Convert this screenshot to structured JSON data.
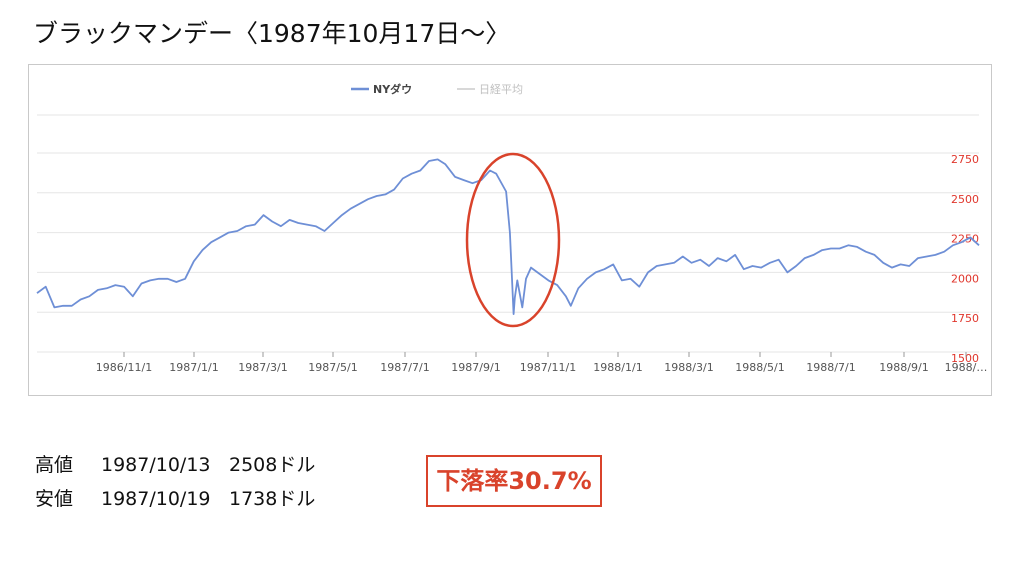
{
  "title": "ブラックマンデー〈1987年10月17日〜〉",
  "stats": {
    "high": {
      "label": "高値",
      "date": "1987/10/13",
      "value": "2508ドル"
    },
    "low": {
      "label": "安値",
      "date": "1987/10/19",
      "value": "1738ドル"
    }
  },
  "drop_label": "下落率30.7%",
  "colors": {
    "series": "#6e8fd6",
    "axis_labels": "#e0362c",
    "highlight": "#d9432b",
    "grid": "#e6e6e6"
  },
  "chart_data": {
    "type": "line",
    "title": "",
    "xlabel": "",
    "ylabel": "",
    "ylim": [
      1500,
      2750
    ],
    "y_ticks": [
      "1500",
      "1750",
      "2000",
      "2250",
      "2500",
      "2750"
    ],
    "x_ticks": [
      "1986/11/1",
      "1987/1/1",
      "1987/3/1",
      "1987/5/1",
      "1987/7/1",
      "1987/9/1",
      "1987/11/1",
      "1988/1/1",
      "1988/3/1",
      "1988/5/1",
      "1988/7/1",
      "1988/9/1",
      "1988/…"
    ],
    "legend": [
      {
        "name": "NYダウ",
        "active": true
      },
      {
        "name": "日経平均",
        "active": false
      }
    ],
    "legend_position": "top",
    "grid": true,
    "series": [
      {
        "name": "NYダウ",
        "x": [
          "1986/10/1",
          "1986/10/8",
          "1986/10/15",
          "1986/10/22",
          "1986/10/29",
          "1986/11/5",
          "1986/11/12",
          "1986/11/19",
          "1986/11/26",
          "1986/12/3",
          "1986/12/10",
          "1986/12/17",
          "1986/12/24",
          "1986/12/31",
          "1987/1/7",
          "1987/1/14",
          "1987/1/21",
          "1987/1/28",
          "1987/2/4",
          "1987/2/11",
          "1987/2/18",
          "1987/2/25",
          "1987/3/4",
          "1987/3/11",
          "1987/3/18",
          "1987/3/25",
          "1987/4/1",
          "1987/4/8",
          "1987/4/15",
          "1987/4/22",
          "1987/4/29",
          "1987/5/6",
          "1987/5/13",
          "1987/5/20",
          "1987/5/27",
          "1987/6/3",
          "1987/6/10",
          "1987/6/17",
          "1987/6/24",
          "1987/7/1",
          "1987/7/8",
          "1987/7/15",
          "1987/7/22",
          "1987/7/29",
          "1987/8/5",
          "1987/8/12",
          "1987/8/19",
          "1987/8/25",
          "1987/9/2",
          "1987/9/9",
          "1987/9/16",
          "1987/9/23",
          "1987/9/30",
          "1987/10/5",
          "1987/10/13",
          "1987/10/16",
          "1987/10/19",
          "1987/10/20",
          "1987/10/22",
          "1987/10/26",
          "1987/10/29",
          "1987/11/2",
          "1987/11/9",
          "1987/11/16",
          "1987/11/23",
          "1987/11/30",
          "1987/12/4",
          "1987/12/10",
          "1987/12/17",
          "1987/12/24",
          "1987/12/31",
          "1988/1/7",
          "1988/1/14",
          "1988/1/21",
          "1988/1/28",
          "1988/2/4",
          "1988/2/11",
          "1988/2/18",
          "1988/2/25",
          "1988/3/3",
          "1988/3/10",
          "1988/3/17",
          "1988/3/24",
          "1988/3/31",
          "1988/4/7",
          "1988/4/14",
          "1988/4/21",
          "1988/4/28",
          "1988/5/5",
          "1988/5/12",
          "1988/5/19",
          "1988/5/26",
          "1988/6/2",
          "1988/6/9",
          "1988/6/16",
          "1988/6/23",
          "1988/6/30",
          "1988/7/7",
          "1988/7/14",
          "1988/7/21",
          "1988/7/28",
          "1988/8/4",
          "1988/8/11",
          "1988/8/18",
          "1988/8/25",
          "1988/9/1",
          "1988/9/8",
          "1988/9/15",
          "1988/9/22",
          "1988/9/29",
          "1988/10/6",
          "1988/10/13",
          "1988/10/20",
          "1988/10/27"
        ],
        "values": [
          1870,
          1910,
          1780,
          1790,
          1790,
          1830,
          1850,
          1890,
          1900,
          1920,
          1910,
          1850,
          1930,
          1950,
          1960,
          1960,
          1940,
          1960,
          2070,
          2140,
          2190,
          2220,
          2250,
          2260,
          2290,
          2300,
          2360,
          2320,
          2290,
          2330,
          2310,
          2300,
          2290,
          2260,
          2310,
          2360,
          2400,
          2430,
          2460,
          2480,
          2490,
          2520,
          2590,
          2620,
          2640,
          2700,
          2710,
          2680,
          2600,
          2580,
          2560,
          2580,
          2640,
          2620,
          2508,
          2250,
          1738,
          1840,
          1950,
          1780,
          1960,
          2030,
          1990,
          1950,
          1920,
          1850,
          1790,
          1900,
          1960,
          2000,
          2020,
          2050,
          1950,
          1960,
          1910,
          2000,
          2040,
          2050,
          2060,
          2100,
          2060,
          2080,
          2040,
          2090,
          2070,
          2110,
          2020,
          2040,
          2030,
          2060,
          2080,
          2000,
          2040,
          2090,
          2110,
          2140,
          2150,
          2150,
          2170,
          2160,
          2130,
          2110,
          2060,
          2030,
          2050,
          2040,
          2090,
          2100,
          2110,
          2130,
          2170,
          2190,
          2220,
          2170
        ]
      }
    ]
  }
}
